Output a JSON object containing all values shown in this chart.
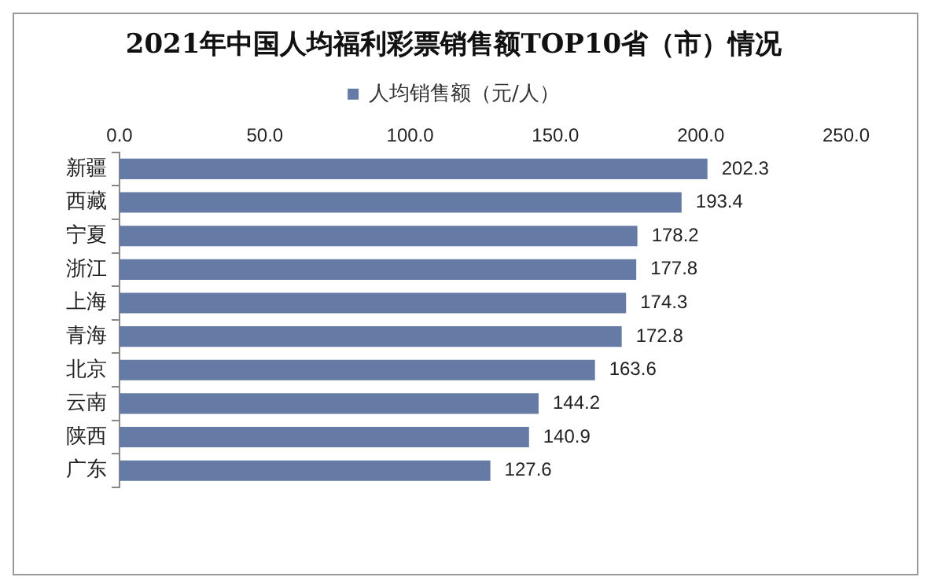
{
  "chart_data": {
    "type": "bar",
    "orientation": "horizontal",
    "title": "2021年中国人均福利彩票销售额TOP10省（市）情况",
    "categories": [
      "新疆",
      "西藏",
      "宁夏",
      "浙江",
      "上海",
      "青海",
      "北京",
      "云南",
      "陕西",
      "广东"
    ],
    "series": [
      {
        "name": "人均销售额（元/人）",
        "color": "#657ba6",
        "values": [
          202.3,
          193.4,
          178.2,
          177.8,
          174.3,
          172.8,
          163.6,
          144.2,
          140.9,
          127.6
        ]
      }
    ],
    "xlim": [
      0,
      250
    ],
    "xticks": [
      {
        "value": 0,
        "label": "0.0"
      },
      {
        "value": 50,
        "label": "50.0"
      },
      {
        "value": 100,
        "label": "100.0"
      },
      {
        "value": 150,
        "label": "150.0"
      },
      {
        "value": 200,
        "label": "200.0"
      },
      {
        "value": 250,
        "label": "250.0"
      }
    ],
    "grid": false,
    "legend": "top",
    "data_labels": true
  }
}
